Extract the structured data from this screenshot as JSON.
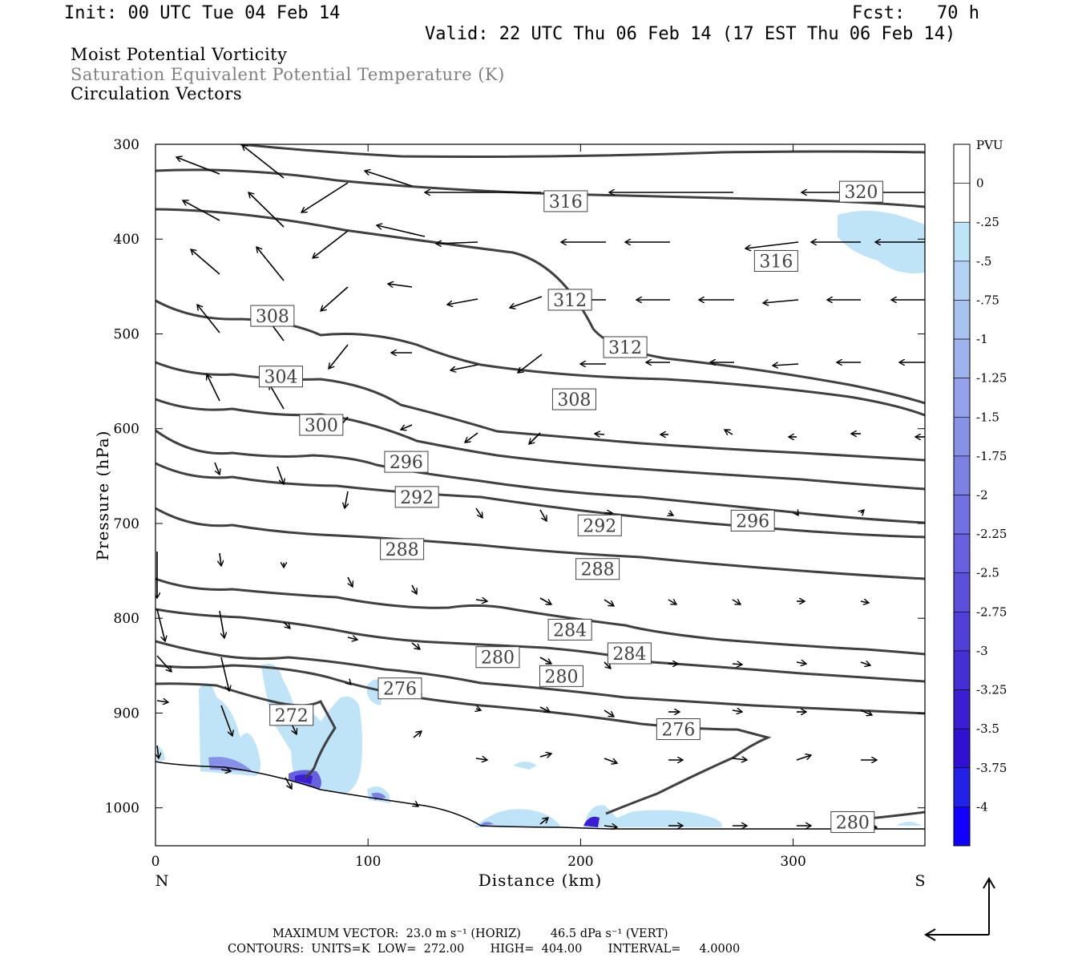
{
  "header": {
    "init": "Init: 00 UTC Tue 04 Feb 14",
    "fcst": "Fcst:   70 h",
    "valid": "Valid: 22 UTC Thu 06 Feb 14 (17 EST Thu 06 Feb 14)"
  },
  "fields": [
    {
      "text": "Moist Potential Vorticity",
      "color": "#000000"
    },
    {
      "text": "Saturation Equivalent Potential Temperature (K)",
      "color": "#808080"
    },
    {
      "text": "Circulation Vectors",
      "color": "#000000"
    }
  ],
  "footer": {
    "line1": "MAXIMUM VECTOR:  23.0 m s⁻¹ (HORIZ)        46.5 dPa s⁻¹ (VERT)",
    "line2": "CONTOURS:  UNITS=K  LOW=  272.00       HIGH=  404.00       INTERVAL=     4.0000"
  },
  "chart_data": {
    "type": "contour cross-section",
    "xlabel": "Distance (km)",
    "ylabel": "Pressure (hPa)",
    "xlim": [
      0,
      362
    ],
    "ylim": [
      1040,
      300
    ],
    "x_ticks": [
      0,
      100,
      200,
      300
    ],
    "y_ticks": [
      300,
      400,
      500,
      600,
      700,
      800,
      900,
      1000
    ],
    "end_labels": {
      "left": "N",
      "right": "S"
    },
    "colorbar": {
      "units": "PVU",
      "labels": [
        "0",
        "-.25",
        "-.5",
        "-.75",
        "-1",
        "-1.25",
        "-1.5",
        "-1.75",
        "-2",
        "-2.25",
        "-2.5",
        "-2.75",
        "-3",
        "-3.25",
        "-3.5",
        "-3.75",
        "-4"
      ],
      "colors": [
        "#ffffff",
        "#ffffff",
        "#bfe4f8",
        "#b4d3f4",
        "#a9c3f1",
        "#9eb2ee",
        "#93a2eb",
        "#8891e8",
        "#7d81e5",
        "#7270e2",
        "#6760df",
        "#5c4fdc",
        "#513fd9",
        "#462ed6",
        "#3b1ed3",
        "#3010d3",
        "#2222e6",
        "#0f00ff"
      ]
    },
    "contour_labels": [
      {
        "value": 320,
        "x": 332,
        "p": 350
      },
      {
        "value": 316,
        "x": 193,
        "p": 360
      },
      {
        "value": 316,
        "x": 292,
        "p": 423
      },
      {
        "value": 312,
        "x": 195,
        "p": 464
      },
      {
        "value": 312,
        "x": 221,
        "p": 514
      },
      {
        "value": 308,
        "x": 55,
        "p": 481
      },
      {
        "value": 308,
        "x": 197,
        "p": 569
      },
      {
        "value": 304,
        "x": 59,
        "p": 545
      },
      {
        "value": 300,
        "x": 78,
        "p": 596
      },
      {
        "value": 296,
        "x": 118,
        "p": 635
      },
      {
        "value": 296,
        "x": 281,
        "p": 697
      },
      {
        "value": 292,
        "x": 123,
        "p": 672
      },
      {
        "value": 292,
        "x": 209,
        "p": 702
      },
      {
        "value": 288,
        "x": 116,
        "p": 727
      },
      {
        "value": 288,
        "x": 208,
        "p": 748
      },
      {
        "value": 284,
        "x": 195,
        "p": 812
      },
      {
        "value": 284,
        "x": 223,
        "p": 837
      },
      {
        "value": 280,
        "x": 161,
        "p": 841
      },
      {
        "value": 280,
        "x": 191,
        "p": 861
      },
      {
        "value": 280,
        "x": 328,
        "p": 1015
      },
      {
        "value": 276,
        "x": 115,
        "p": 874
      },
      {
        "value": 276,
        "x": 246,
        "p": 917
      },
      {
        "value": 272,
        "x": 64,
        "p": 902
      }
    ]
  }
}
